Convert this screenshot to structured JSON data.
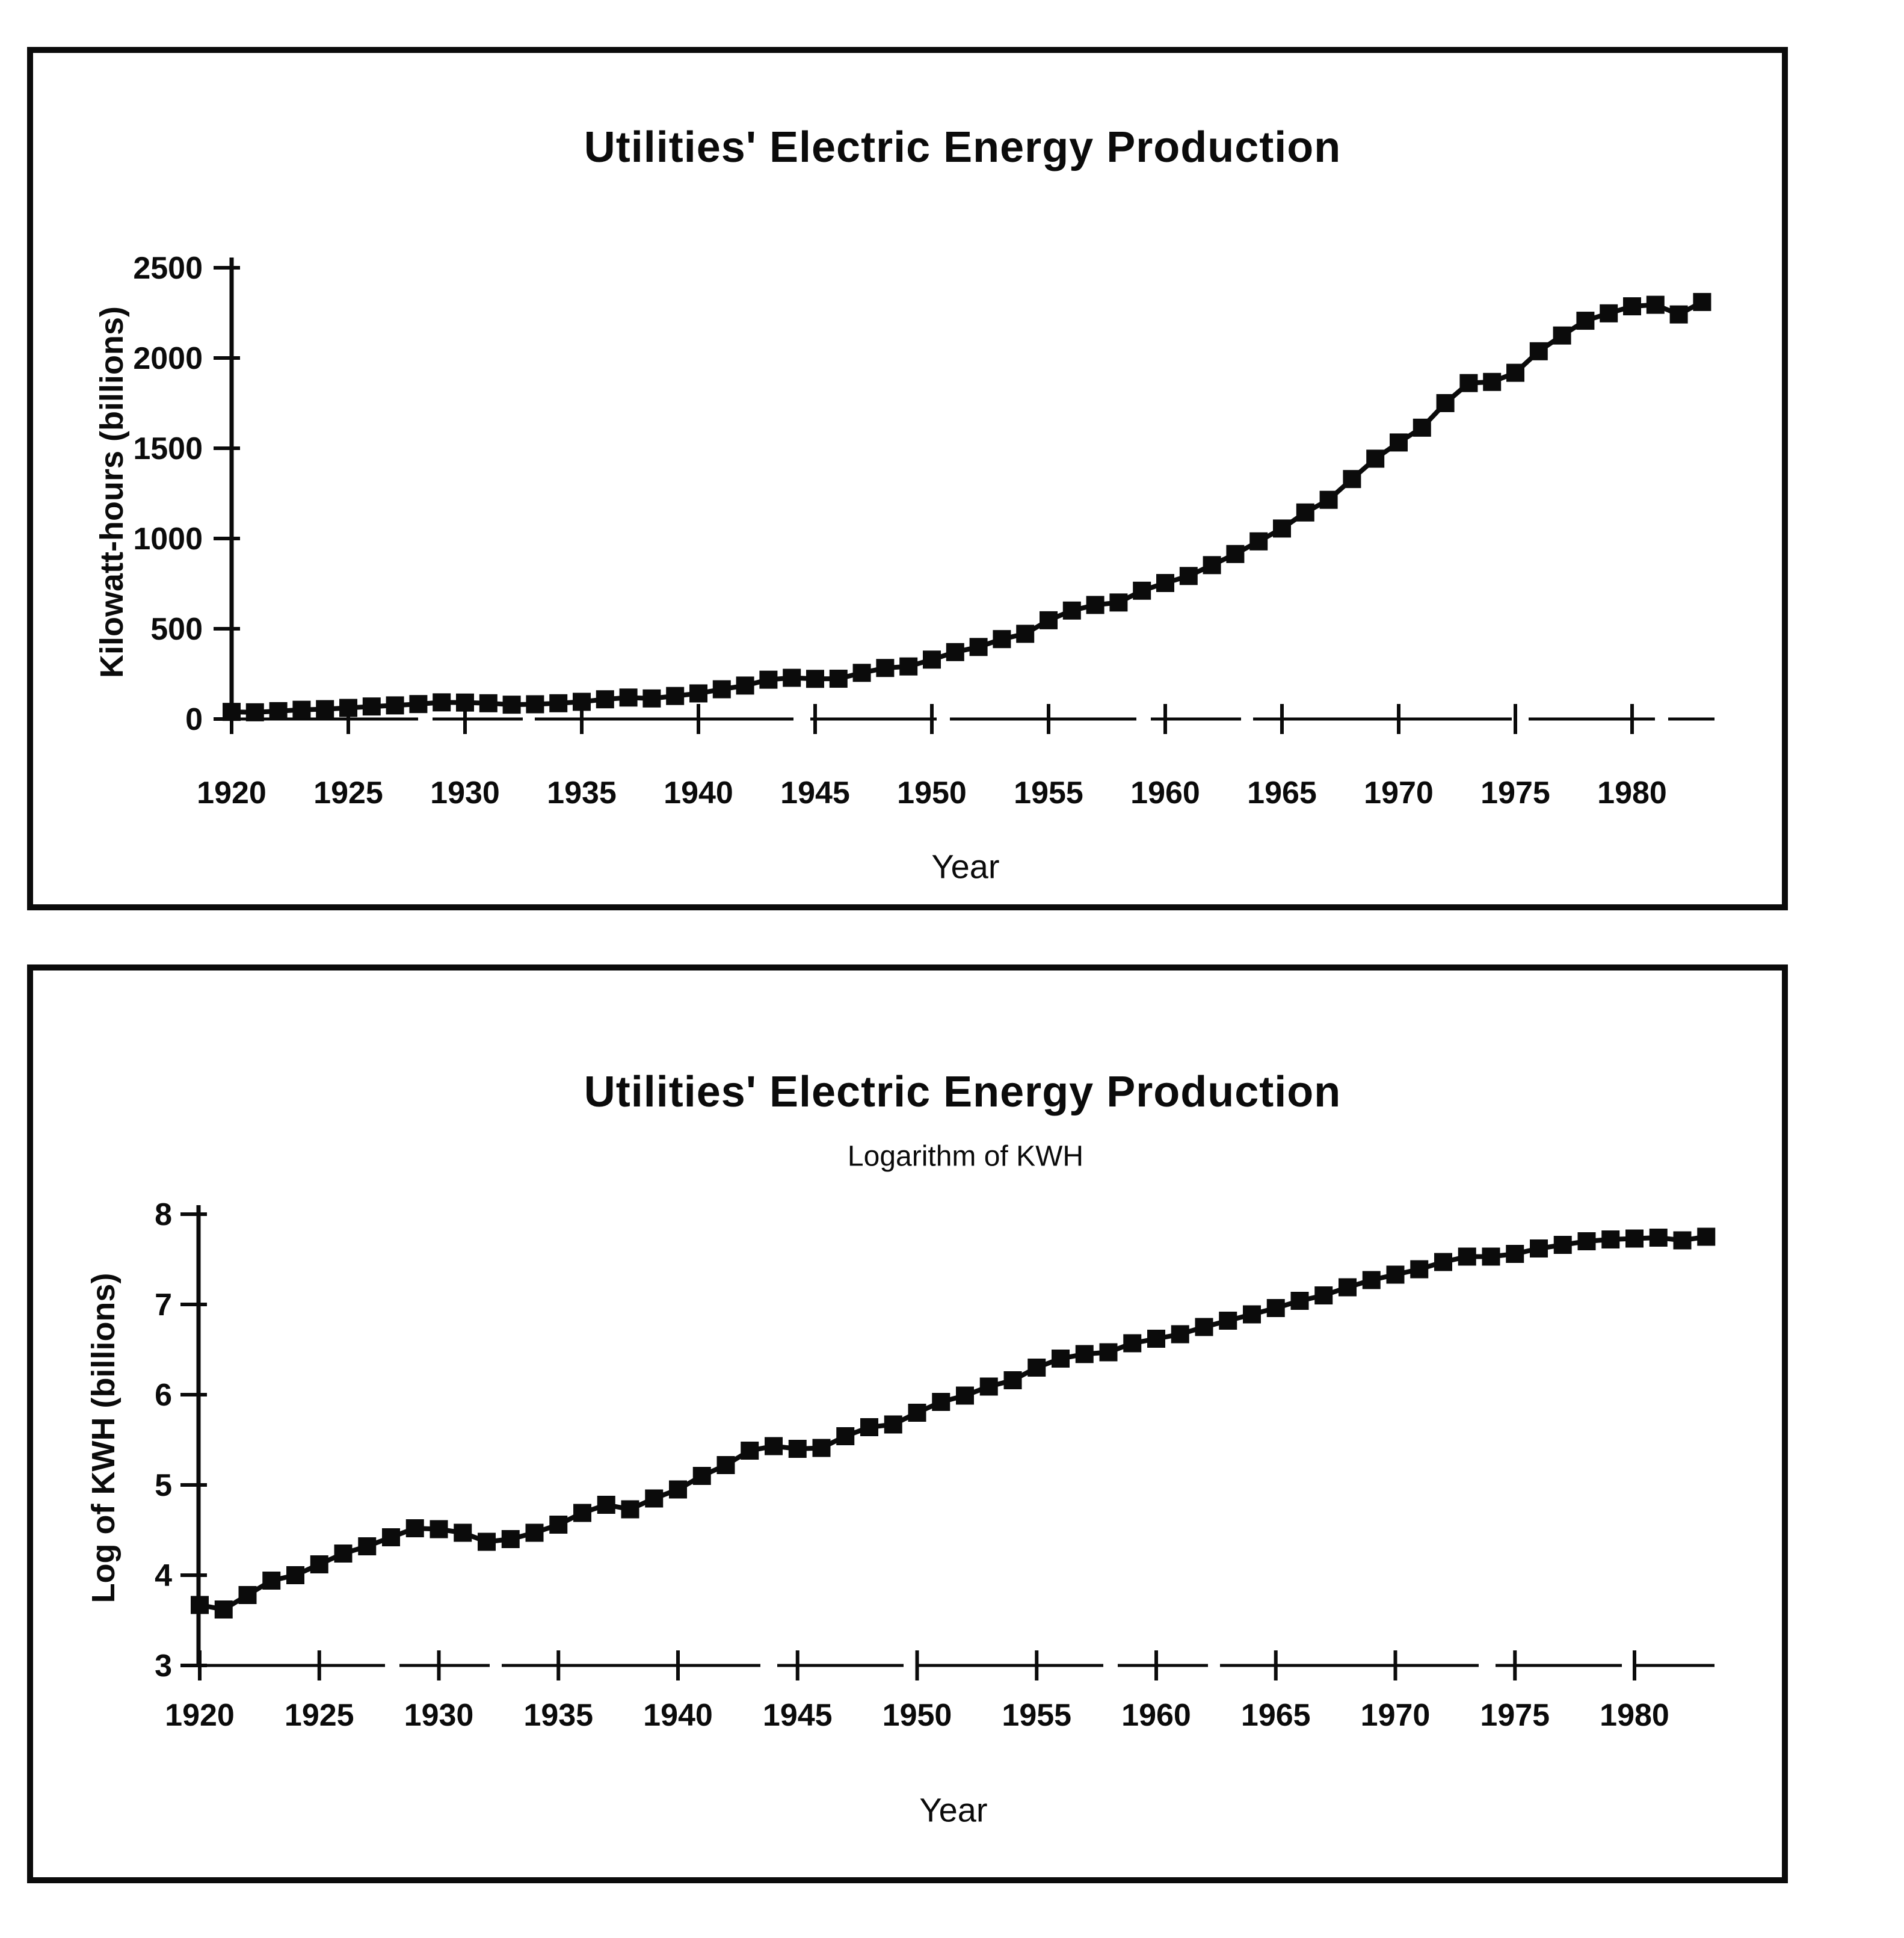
{
  "page": {
    "background": "#ffffff",
    "ink": "#0b0b0b"
  },
  "chart_data": [
    {
      "type": "line",
      "title": "Utilities' Electric Energy Production",
      "xlabel": "Year",
      "ylabel": "Kilowatt-hours (billions)",
      "marker": "filled-square",
      "grid": false,
      "legend": "none",
      "xlim": [
        1918.5,
        1984.5
      ],
      "ylim": [
        0,
        2500
      ],
      "x_ticks": [
        1920,
        1925,
        1930,
        1935,
        1940,
        1945,
        1950,
        1955,
        1960,
        1965,
        1970,
        1975,
        1980
      ],
      "y_ticks": [
        0,
        500,
        1000,
        1500,
        2000,
        2500
      ],
      "x": [
        1920,
        1921,
        1922,
        1923,
        1924,
        1925,
        1926,
        1927,
        1928,
        1929,
        1930,
        1931,
        1932,
        1933,
        1934,
        1935,
        1936,
        1937,
        1938,
        1939,
        1940,
        1941,
        1942,
        1943,
        1944,
        1945,
        1946,
        1947,
        1948,
        1949,
        1950,
        1951,
        1952,
        1953,
        1954,
        1955,
        1956,
        1957,
        1958,
        1959,
        1960,
        1961,
        1962,
        1963,
        1964,
        1965,
        1966,
        1967,
        1968,
        1969,
        1970,
        1971,
        1972,
        1973,
        1974,
        1975,
        1976,
        1977,
        1978,
        1979,
        1980,
        1981,
        1982,
        1983
      ],
      "values": [
        39.4,
        37.2,
        43.6,
        51.2,
        54.7,
        61.5,
        69.4,
        75.4,
        82.8,
        92.2,
        91.1,
        87.3,
        79.4,
        81.7,
        87.3,
        95.3,
        109.3,
        118.9,
        113.8,
        127.6,
        141.8,
        164.8,
        185.3,
        217.8,
        228.2,
        222.5,
        223.2,
        255.7,
        282.7,
        291.1,
        329.1,
        370.7,
        399.0,
        442.7,
        472.0,
        547.0,
        600.8,
        631.9,
        645.5,
        710.7,
        753.4,
        792.3,
        852.5,
        914.1,
        984.1,
        1055.3,
        1144.2,
        1214.3,
        1329.4,
        1442.2,
        1532.0,
        1613.9,
        1750.1,
        1861.1,
        1867.4,
        1918.0,
        2037.3,
        2124.5,
        2206.5,
        2247.4,
        2286.4,
        2294.8,
        2241.2,
        2310.3
      ]
    },
    {
      "type": "line",
      "title": "Utilities' Electric Energy Production",
      "subtitle": "Logarithm of KWH",
      "xlabel": "Year",
      "ylabel": "Log of KWH (billions)",
      "marker": "filled-square",
      "grid": false,
      "legend": "none",
      "xlim": [
        1918.5,
        1984.5
      ],
      "ylim": [
        3,
        8
      ],
      "x_ticks": [
        1920,
        1925,
        1930,
        1935,
        1940,
        1945,
        1950,
        1955,
        1960,
        1965,
        1970,
        1975,
        1980
      ],
      "y_ticks": [
        3,
        4,
        5,
        6,
        7,
        8
      ],
      "x": [
        1920,
        1921,
        1922,
        1923,
        1924,
        1925,
        1926,
        1927,
        1928,
        1929,
        1930,
        1931,
        1932,
        1933,
        1934,
        1935,
        1936,
        1937,
        1938,
        1939,
        1940,
        1941,
        1942,
        1943,
        1944,
        1945,
        1946,
        1947,
        1948,
        1949,
        1950,
        1951,
        1952,
        1953,
        1954,
        1955,
        1956,
        1957,
        1958,
        1959,
        1960,
        1961,
        1962,
        1963,
        1964,
        1965,
        1966,
        1967,
        1968,
        1969,
        1970,
        1971,
        1972,
        1973,
        1974,
        1975,
        1976,
        1977,
        1978,
        1979,
        1980,
        1981,
        1982,
        1983
      ],
      "values": [
        3.67,
        3.62,
        3.78,
        3.94,
        4.0,
        4.12,
        4.24,
        4.32,
        4.42,
        4.52,
        4.51,
        4.47,
        4.37,
        4.4,
        4.47,
        4.56,
        4.69,
        4.78,
        4.73,
        4.85,
        4.95,
        5.1,
        5.22,
        5.38,
        5.43,
        5.4,
        5.41,
        5.54,
        5.64,
        5.67,
        5.8,
        5.92,
        5.99,
        6.09,
        6.16,
        6.3,
        6.4,
        6.45,
        6.47,
        6.57,
        6.62,
        6.67,
        6.75,
        6.82,
        6.89,
        6.96,
        7.04,
        7.1,
        7.19,
        7.27,
        7.33,
        7.39,
        7.47,
        7.53,
        7.53,
        7.56,
        7.62,
        7.66,
        7.7,
        7.72,
        7.73,
        7.74,
        7.71,
        7.75
      ]
    }
  ]
}
